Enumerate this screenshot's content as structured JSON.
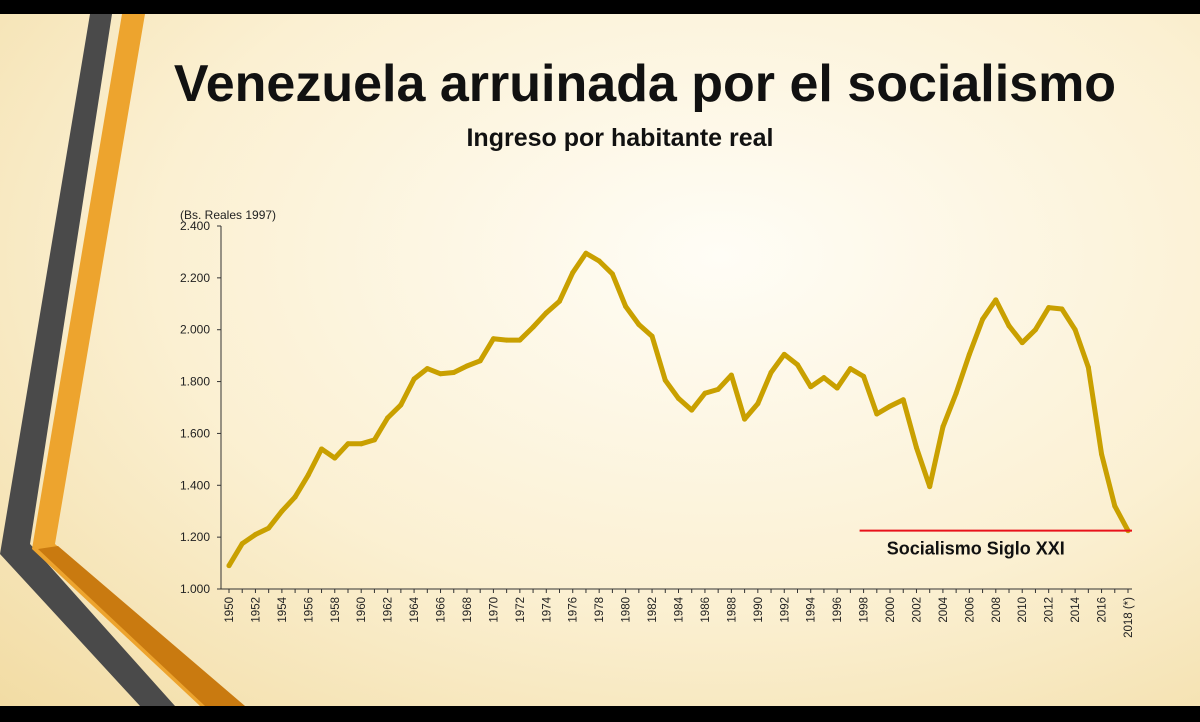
{
  "title": "Venezuela arruinada por el socialismo",
  "subtitle": "Ingreso  por habitante real",
  "colors": {
    "line": "#c9a000",
    "marker": "#e8121b",
    "stripe_gray": "#4a4a4a",
    "stripe_orange": "#eda42e"
  },
  "chart_data": {
    "type": "line",
    "title": "Ingreso  por habitante real",
    "ylabel": "(Bs. Reales 1997)",
    "xlabel": "",
    "ylim": [
      1000,
      2400
    ],
    "yticks": [
      1000,
      1200,
      1400,
      1600,
      1800,
      2000,
      2200,
      2400
    ],
    "ytick_labels": [
      "1.000",
      "1.200",
      "1.400",
      "1.600",
      "1.800",
      "2.000",
      "2.200",
      "2.400"
    ],
    "xtick_labels": [
      "1950",
      "1952",
      "1954",
      "1956",
      "1958",
      "1960",
      "1962",
      "1964",
      "1966",
      "1968",
      "1970",
      "1972",
      "1974",
      "1976",
      "1978",
      "1980",
      "1982",
      "1984",
      "1986",
      "1988",
      "1990",
      "1992",
      "1994",
      "1996",
      "1998",
      "2000",
      "2002",
      "2004",
      "2006",
      "2008",
      "2010",
      "2012",
      "2014",
      "2016",
      "2018 (*)"
    ],
    "x": [
      1950,
      1951,
      1952,
      1953,
      1954,
      1955,
      1956,
      1957,
      1958,
      1959,
      1960,
      1961,
      1962,
      1963,
      1964,
      1965,
      1966,
      1967,
      1968,
      1969,
      1970,
      1971,
      1972,
      1973,
      1974,
      1975,
      1976,
      1977,
      1978,
      1979,
      1980,
      1981,
      1982,
      1983,
      1984,
      1985,
      1986,
      1987,
      1988,
      1989,
      1990,
      1991,
      1992,
      1993,
      1994,
      1995,
      1996,
      1997,
      1998,
      1999,
      2000,
      2001,
      2002,
      2003,
      2004,
      2005,
      2006,
      2007,
      2008,
      2009,
      2010,
      2011,
      2012,
      2013,
      2014,
      2015,
      2016,
      2017,
      2018
    ],
    "values": [
      1090,
      1175,
      1210,
      1235,
      1300,
      1355,
      1440,
      1540,
      1505,
      1560,
      1560,
      1575,
      1660,
      1710,
      1810,
      1850,
      1830,
      1835,
      1860,
      1880,
      1965,
      1960,
      1960,
      2010,
      2065,
      2110,
      2220,
      2295,
      2265,
      2215,
      2090,
      2020,
      1975,
      1805,
      1735,
      1690,
      1755,
      1770,
      1825,
      1655,
      1715,
      1835,
      1905,
      1865,
      1780,
      1815,
      1775,
      1850,
      1820,
      1675,
      1705,
      1730,
      1545,
      1395,
      1625,
      1755,
      1905,
      2040,
      2115,
      2015,
      1950,
      2000,
      2085,
      2080,
      2000,
      1855,
      1520,
      1320,
      1225
    ],
    "grid": false,
    "annotation": {
      "text": "Socialismo Siglo XXI",
      "x_start": 1998,
      "x_end": 2018,
      "y": 1225
    }
  }
}
